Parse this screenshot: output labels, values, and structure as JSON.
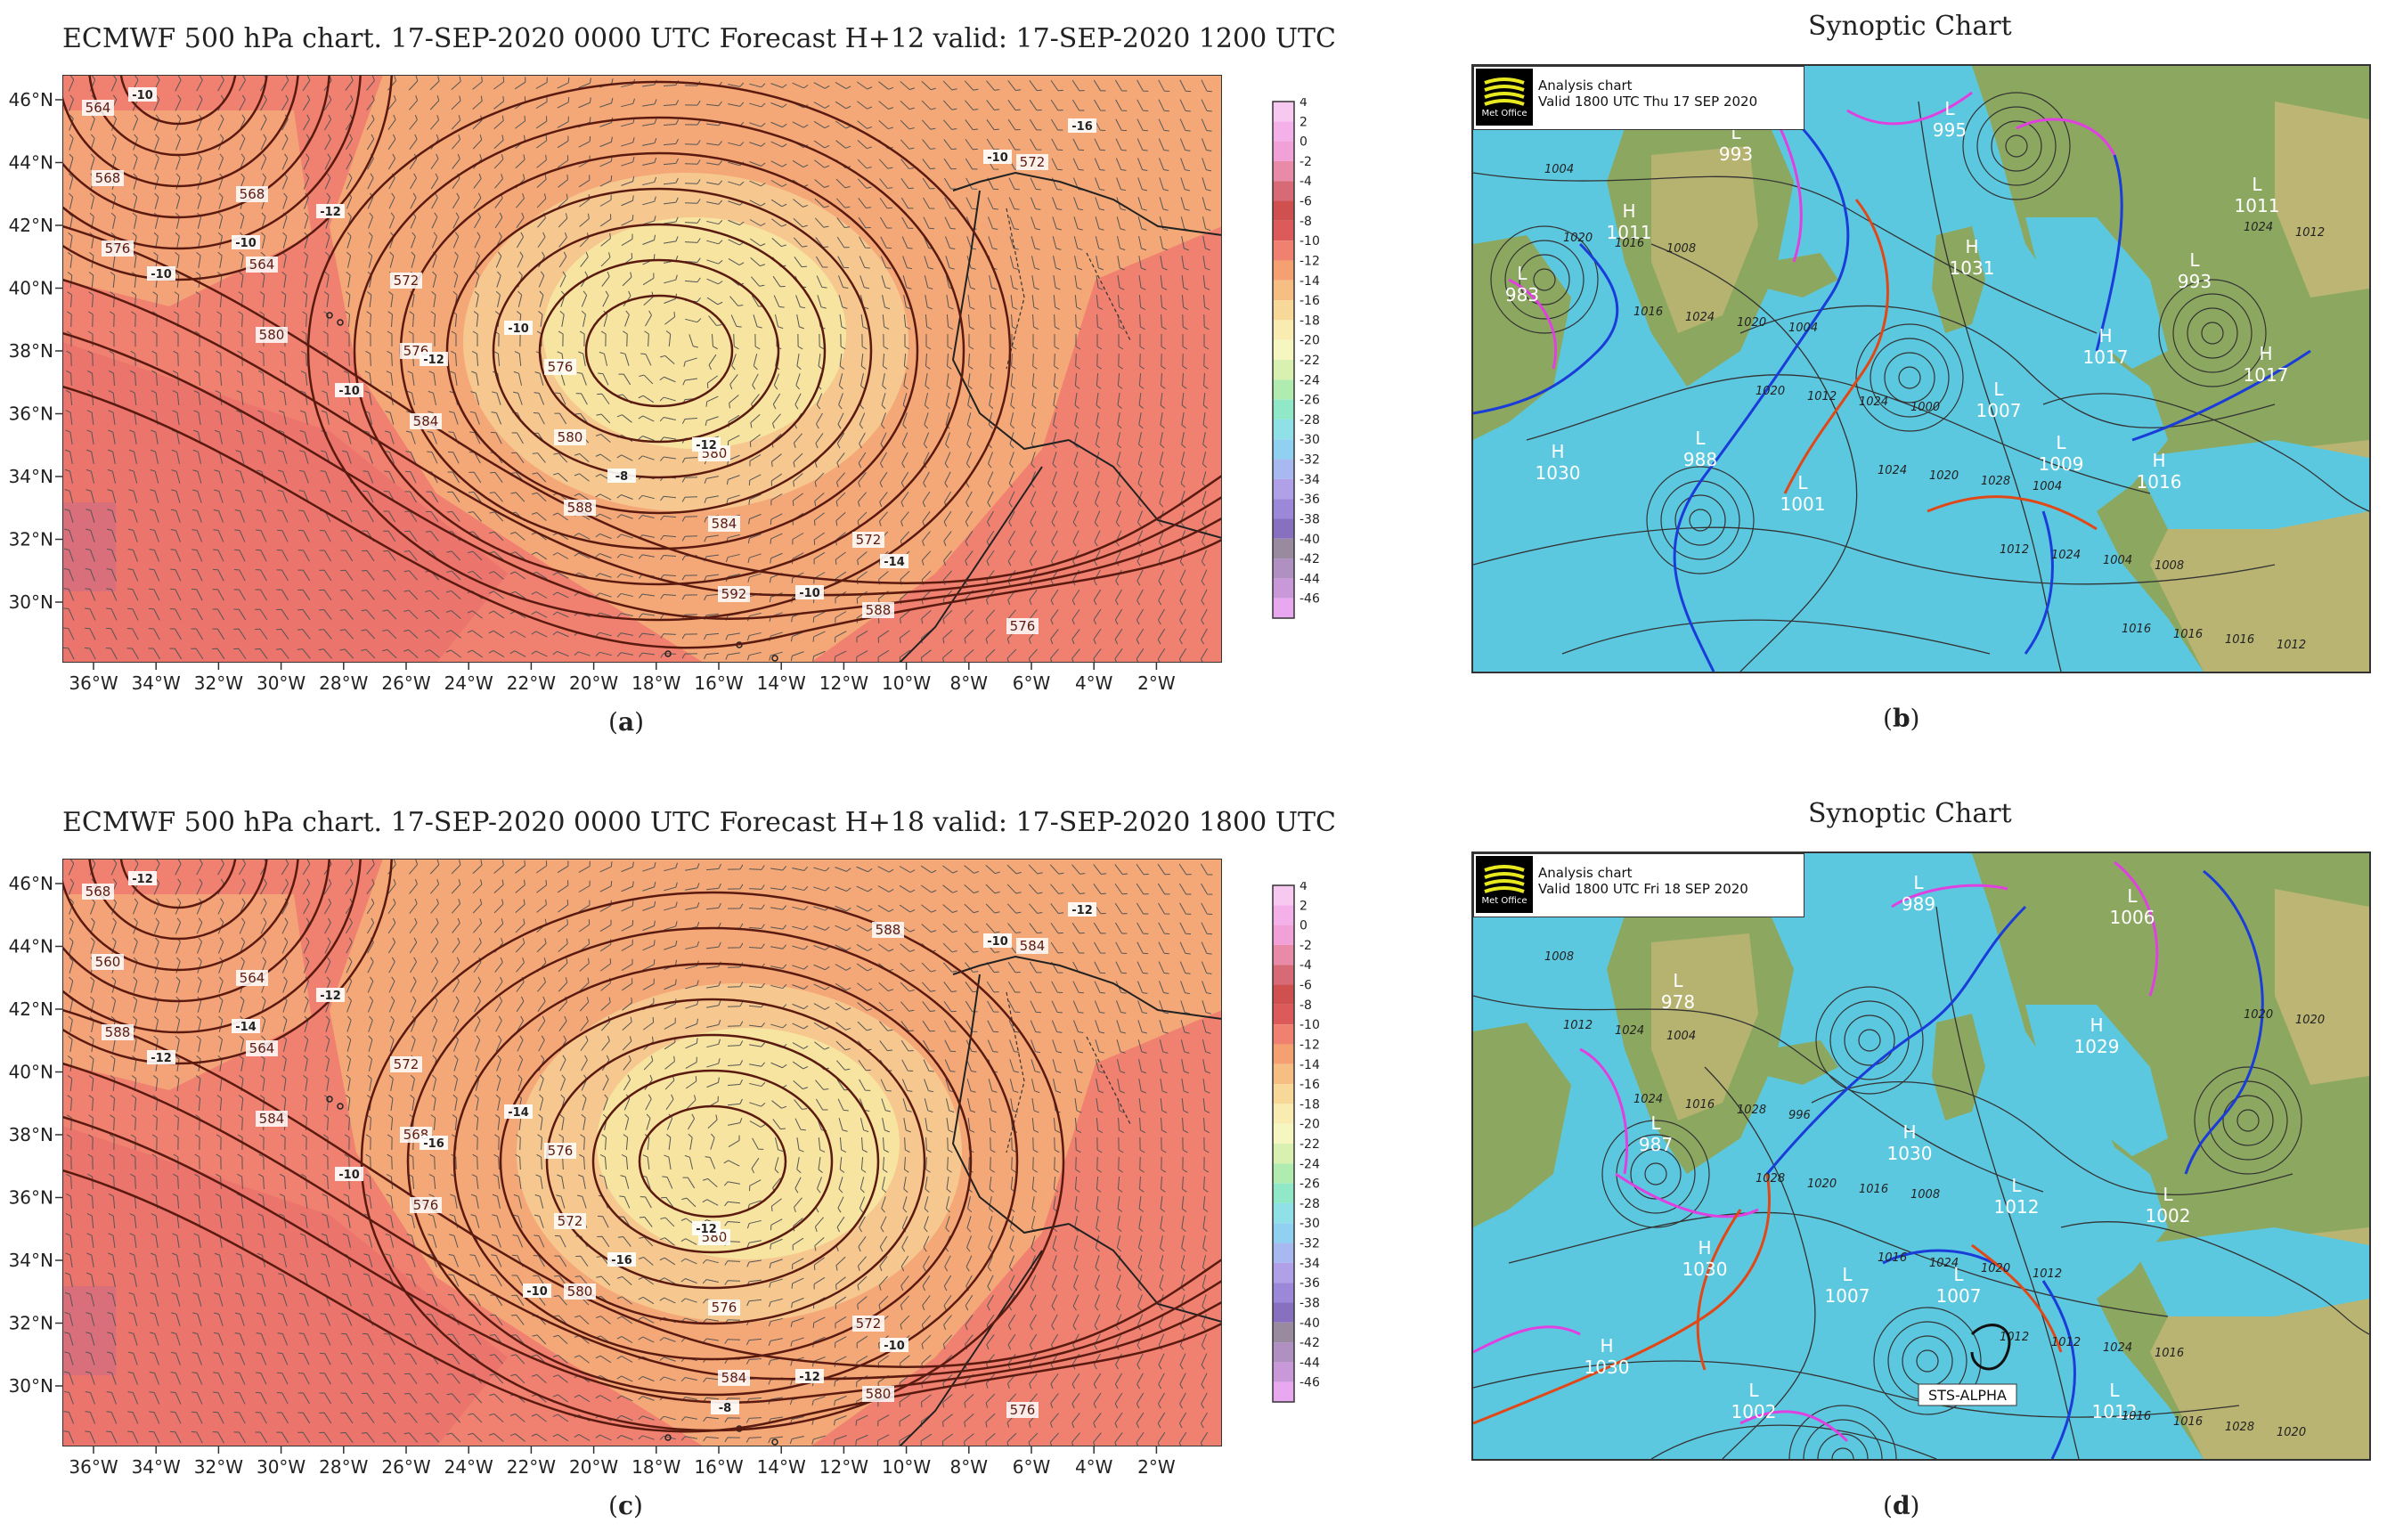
{
  "panels": {
    "a": {
      "title": "ECMWF 500 hPa chart. 17-SEP-2020 0000 UTC Forecast H+12 valid: 17-SEP-2020 1200 UTC",
      "label_letter": "a",
      "contour_labels": [
        "564",
        "568",
        "572",
        "576",
        "580",
        "572",
        "576",
        "568",
        "564",
        "576",
        "580",
        "584",
        "588",
        "572",
        "576",
        "580",
        "584",
        "588",
        "592"
      ],
      "temp_labels": [
        "-10",
        "-12",
        "-10",
        "-12",
        "-14",
        "-16",
        "-10",
        "-12",
        "-8",
        "-10",
        "-10",
        "-10",
        "-10"
      ]
    },
    "b": {
      "title": "Synoptic Chart",
      "label_letter": "b",
      "box_line1": "Analysis chart",
      "box_line2": "Valid 1800 UTC Thu 17 SEP 2020",
      "logo_text": "Met Office",
      "pressure_centres": [
        {
          "type": "L",
          "value": "993"
        },
        {
          "type": "L",
          "value": "995"
        },
        {
          "type": "H",
          "value": "1011"
        },
        {
          "type": "H",
          "value": "1031"
        },
        {
          "type": "L",
          "value": "983"
        },
        {
          "type": "L",
          "value": "993"
        },
        {
          "type": "L",
          "value": "1011"
        },
        {
          "type": "H",
          "value": "1017"
        },
        {
          "type": "H",
          "value": "1017"
        },
        {
          "type": "L",
          "value": "1007"
        },
        {
          "type": "H",
          "value": "1030"
        },
        {
          "type": "L",
          "value": "988"
        },
        {
          "type": "L",
          "value": "1001"
        },
        {
          "type": "L",
          "value": "1009"
        },
        {
          "type": "H",
          "value": "1016"
        }
      ],
      "isobar_labels": [
        "1004",
        "1008",
        "1004",
        "1000",
        "1004",
        "1008",
        "1012",
        "1016",
        "1020",
        "1024",
        "1028",
        "1004",
        "1016",
        "1020",
        "1024",
        "1012",
        "1020",
        "1024",
        "1016",
        "1012",
        "1016",
        "1020",
        "1024",
        "1012",
        "1016",
        "1024"
      ]
    },
    "c": {
      "title": "ECMWF 500 hPa chart. 17-SEP-2020 0000 UTC Forecast H+18 valid: 17-SEP-2020 1800 UTC",
      "label_letter": "c",
      "contour_labels": [
        "568",
        "564",
        "572",
        "576",
        "580",
        "572",
        "576",
        "560",
        "564",
        "568",
        "572",
        "576",
        "580",
        "584",
        "588",
        "584",
        "576",
        "580",
        "584",
        "588"
      ],
      "temp_labels": [
        "-12",
        "-12",
        "-14",
        "-12",
        "-10",
        "-12",
        "-14",
        "-16",
        "-16",
        "-12",
        "-10",
        "-12",
        "-10",
        "-10",
        "-8"
      ]
    },
    "d": {
      "title": "Synoptic Chart",
      "label_letter": "d",
      "box_line1": "Analysis chart",
      "box_line2": "Valid 1800 UTC Fri 18 SEP 2020",
      "logo_text": "Met Office",
      "storm_label": "STS-ALPHA",
      "pressure_centres": [
        {
          "type": "L",
          "value": "989"
        },
        {
          "type": "L",
          "value": "1006"
        },
        {
          "type": "L",
          "value": "978"
        },
        {
          "type": "H",
          "value": "1029"
        },
        {
          "type": "L",
          "value": "987"
        },
        {
          "type": "H",
          "value": "1030"
        },
        {
          "type": "L",
          "value": "1012"
        },
        {
          "type": "L",
          "value": "1002"
        },
        {
          "type": "H",
          "value": "1030"
        },
        {
          "type": "L",
          "value": "1007"
        },
        {
          "type": "L",
          "value": "1007"
        },
        {
          "type": "H",
          "value": "1030"
        },
        {
          "type": "L",
          "value": "1002"
        },
        {
          "type": "L",
          "value": "1012"
        }
      ],
      "isobar_labels": [
        "1008",
        "1004",
        "996",
        "1008",
        "1012",
        "1016",
        "1020",
        "1024",
        "1028",
        "1016",
        "1020",
        "1024",
        "1028",
        "1012",
        "1016",
        "1020",
        "1024",
        "1012",
        "1016",
        "1020",
        "1024",
        "1028",
        "1016",
        "1012",
        "1016",
        "1020"
      ]
    }
  },
  "ecmwf_axes": {
    "lon_labels": [
      "36°W",
      "34°W",
      "32°W",
      "30°W",
      "28°W",
      "26°W",
      "24°W",
      "22°W",
      "20°W",
      "18°W",
      "16°W",
      "14°W",
      "12°W",
      "10°W",
      "8°W",
      "6°W",
      "4°W",
      "2°W"
    ],
    "lat_labels": [
      "46°N",
      "44°N",
      "42°N",
      "40°N",
      "38°N",
      "36°N",
      "34°N",
      "32°N",
      "30°N"
    ]
  },
  "colorbar": {
    "ticks": [
      "4",
      "2",
      "0",
      "-2",
      "-4",
      "-6",
      "-8",
      "-10",
      "-12",
      "-14",
      "-16",
      "-18",
      "-20",
      "-22",
      "-24",
      "-26",
      "-28",
      "-30",
      "-32",
      "-34",
      "-36",
      "-38",
      "-40",
      "-42",
      "-44",
      "-46"
    ],
    "colors": [
      "#f7c8f0",
      "#f4b0e8",
      "#f2a0d8",
      "#e88aa8",
      "#d86a78",
      "#d05050",
      "#dc5a5a",
      "#f08070",
      "#f4a070",
      "#f6be82",
      "#f8d898",
      "#f8ecb0",
      "#f6f6c0",
      "#d8f0b0",
      "#b0ecb0",
      "#90e8c8",
      "#90e0e8",
      "#90d0f0",
      "#a8b8f0",
      "#b0a0e8",
      "#9c88d8",
      "#8870c0",
      "#9a8aa0",
      "#b090c0",
      "#c898d8",
      "#e8a8f0"
    ]
  },
  "colors": {
    "ecmwf_warm": "#f08070",
    "ecmwf_orange": "#f4a878",
    "ecmwf_yellow": "#f6e4a0",
    "sea": "#5cc8e0",
    "land_green": "#8ca860",
    "land_tan": "#c8b878",
    "front_cold": "#1a3cd8",
    "front_warm": "#e04818",
    "front_occluded": "#e040e0"
  }
}
